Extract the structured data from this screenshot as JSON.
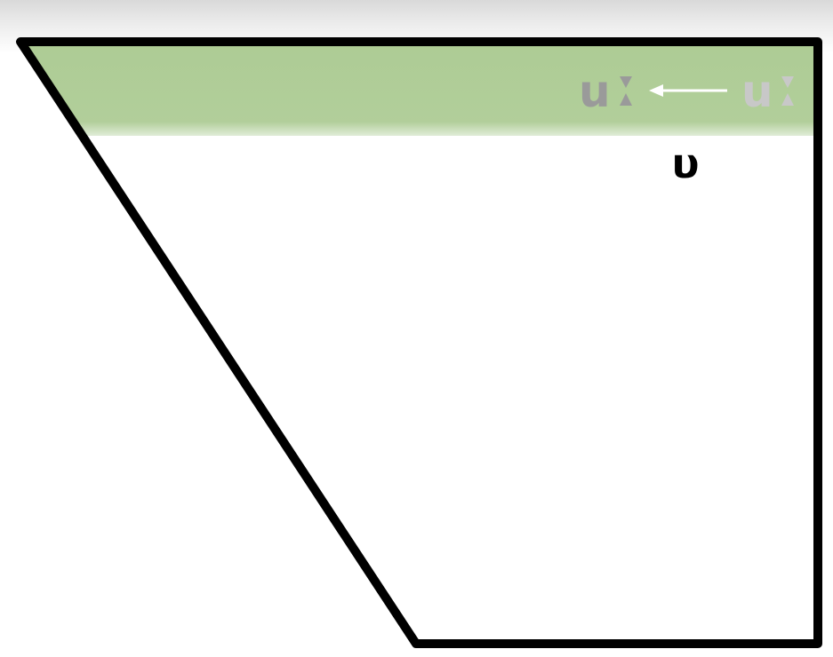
{
  "diagram": {
    "band": {
      "left_term": "u",
      "right_term": "u",
      "arrow_glyph": "←",
      "band_color": "#a9c98f",
      "text_color_left": "#9a9a9a",
      "text_color_right": "#c8c8c8"
    },
    "label": {
      "text": "υ"
    },
    "outline_color": "#000000"
  }
}
